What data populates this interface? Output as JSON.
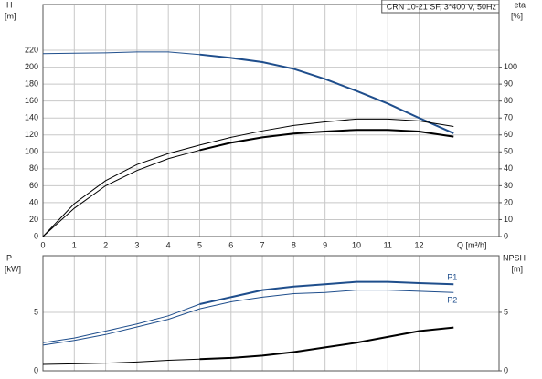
{
  "chart_data": [
    {
      "type": "line",
      "legend_box": "CRN 10-21 SF, 3*400 V, 50Hz",
      "y_label": "H",
      "y_unit": "[m]",
      "y2_label": "eta",
      "y2_unit": "[%]",
      "x_label": "Q [m³/h]",
      "x": [
        0,
        1,
        2,
        3,
        4,
        5,
        6,
        7,
        8,
        9,
        10,
        11,
        12,
        13.1
      ],
      "xlim": [
        0,
        14.55
      ],
      "xticks": [
        0,
        1,
        2,
        3,
        4,
        5,
        6,
        7,
        8,
        9,
        10,
        11,
        12
      ],
      "xtick_labels": true,
      "ylim": [
        0,
        274
      ],
      "yticks": [
        0,
        20,
        40,
        60,
        80,
        100,
        120,
        140,
        160,
        180,
        200,
        220
      ],
      "y2lim": [
        0,
        137
      ],
      "y2ticks": [
        0,
        10,
        20,
        30,
        40,
        50,
        60,
        70,
        80,
        90,
        100
      ],
      "grid": true,
      "series": [
        {
          "color": "#1f4e8c",
          "width": 1,
          "values": [
            216,
            216.5,
            217,
            218,
            218,
            215,
            null,
            null,
            null,
            null,
            null,
            null,
            null,
            null
          ]
        },
        {
          "color": "#1f4e8c",
          "width": 2,
          "values": [
            null,
            null,
            null,
            null,
            null,
            215,
            211,
            206,
            198,
            186,
            172,
            157,
            140,
            122
          ]
        },
        {
          "color": "#000000",
          "width": 1,
          "axis": "y2",
          "values": [
            0,
            19.4,
            33,
            42.5,
            49,
            54,
            58.6,
            62.4,
            65.6,
            67.7,
            69.4,
            69.4,
            68.3,
            65
          ]
        },
        {
          "color": "#000000",
          "width": 1,
          "axis": "y2",
          "values": [
            0,
            16.7,
            30,
            39,
            46,
            51,
            null,
            null,
            null,
            null,
            null,
            null,
            null,
            null
          ]
        },
        {
          "color": "#000000",
          "width": 2,
          "axis": "y2",
          "values": [
            null,
            null,
            null,
            null,
            null,
            51,
            55.4,
            58.6,
            60.8,
            62,
            63,
            63,
            62,
            59
          ]
        }
      ]
    },
    {
      "type": "line",
      "y_label": "P",
      "y_unit": "[kW]",
      "y2_label": "NPSH",
      "y2_unit": "[m]",
      "x": [
        0,
        1,
        2,
        3,
        4,
        5,
        6,
        7,
        8,
        9,
        10,
        11,
        12,
        13.1
      ],
      "xlim": [
        0,
        14.55
      ],
      "xticks": [
        0,
        1,
        2,
        3,
        4,
        5,
        6,
        7,
        8,
        9,
        10,
        11,
        12
      ],
      "xtick_labels": false,
      "ylim": [
        0,
        9.84
      ],
      "yticks": [
        0,
        5
      ],
      "y2lim": [
        0,
        9.84
      ],
      "y2ticks": [
        0,
        5
      ],
      "grid": true,
      "series": [
        {
          "color": "#1f4e8c",
          "width": 1,
          "values": [
            2.4,
            2.8,
            3.4,
            4.0,
            4.7,
            5.7,
            null,
            null,
            null,
            null,
            null,
            null,
            null,
            null
          ]
        },
        {
          "name": "P1",
          "color": "#1f4e8c",
          "width": 2,
          "values": [
            null,
            null,
            null,
            null,
            null,
            5.7,
            6.3,
            6.9,
            7.2,
            7.4,
            7.6,
            7.6,
            7.5,
            7.4
          ]
        },
        {
          "name": "P2",
          "color": "#1f4e8c",
          "width": 1,
          "values": [
            2.2,
            2.6,
            3.1,
            3.75,
            4.4,
            5.3,
            5.9,
            6.3,
            6.6,
            6.7,
            6.9,
            6.9,
            6.8,
            6.7
          ]
        },
        {
          "color": "#000000",
          "width": 1,
          "axis": "y2",
          "values": [
            0.55,
            0.6,
            0.65,
            0.75,
            0.9,
            1.0,
            null,
            null,
            null,
            null,
            null,
            null,
            null,
            null
          ]
        },
        {
          "color": "#000000",
          "width": 2,
          "axis": "y2",
          "values": [
            null,
            null,
            null,
            null,
            null,
            1.0,
            1.1,
            1.3,
            1.6,
            2.0,
            2.4,
            2.9,
            3.4,
            3.7
          ]
        }
      ]
    }
  ]
}
